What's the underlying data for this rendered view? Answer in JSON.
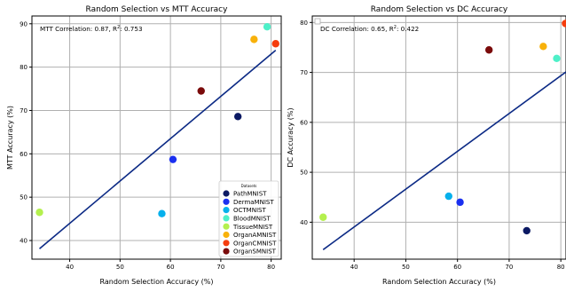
{
  "chart_data": [
    {
      "type": "scatter",
      "title": "Random Selection vs MTT Accuracy",
      "xlabel": "Random Selection Accuracy (%)",
      "ylabel": "MTT Accuracy (%)",
      "xlim": [
        32.5,
        82.0
      ],
      "ylim": [
        35.7,
        91.8
      ],
      "xticks": [
        40,
        50,
        60,
        70,
        80
      ],
      "yticks": [
        40,
        50,
        60,
        70,
        80,
        90
      ],
      "grid": true,
      "annotation_prefix": "MTT Correlation: 0.87, R",
      "annotation_sup": "2",
      "annotation_suffix": ": 0.753",
      "legend": {
        "title": "Datasets",
        "placement": "lower-right",
        "entries": [
          "PathMNIST",
          "DermaMNIST",
          "OCTMNIST",
          "BloodMNIST",
          "TissueMNIST",
          "OrganAMNIST",
          "OrganCMNIST",
          "OrganSMNIST"
        ]
      },
      "points": [
        {
          "name": "PathMNIST",
          "x": 73.4,
          "y": 68.6,
          "color": "#0b1963"
        },
        {
          "name": "DermaMNIST",
          "x": 60.5,
          "y": 58.7,
          "color": "#1a2ff0"
        },
        {
          "name": "OCTMNIST",
          "x": 58.3,
          "y": 46.2,
          "color": "#06b0ec"
        },
        {
          "name": "BloodMNIST",
          "x": 79.2,
          "y": 89.3,
          "color": "#4ef0c8"
        },
        {
          "name": "TissueMNIST",
          "x": 34.0,
          "y": 46.5,
          "color": "#b4f04e"
        },
        {
          "name": "OrganAMNIST",
          "x": 76.6,
          "y": 86.4,
          "color": "#f8b10a"
        },
        {
          "name": "OrganCMNIST",
          "x": 80.9,
          "y": 85.4,
          "color": "#f53d0e"
        },
        {
          "name": "OrganSMNIST",
          "x": 66.1,
          "y": 74.5,
          "color": "#7a0a0a"
        }
      ],
      "fit_line": {
        "x": [
          34.0,
          80.9
        ],
        "y": [
          38.1,
          83.9
        ],
        "color": "#0c2a85"
      }
    },
    {
      "type": "scatter",
      "title": "Random Selection vs DC Accuracy",
      "xlabel": "Random Selection Accuracy (%)",
      "ylabel": "DC Accuracy (%)",
      "xlim": [
        31.9,
        81.0
      ],
      "ylim": [
        32.6,
        81.3
      ],
      "xticks": [
        40,
        50,
        60,
        70,
        80
      ],
      "yticks": [
        40,
        50,
        60,
        70,
        80
      ],
      "grid": true,
      "annotation_prefix": "DC Correlation: 0.65, R",
      "annotation_sup": "2",
      "annotation_suffix": ": 0.422",
      "legend": {
        "placement": "upper-left"
      },
      "points": [
        {
          "name": "PathMNIST",
          "x": 73.4,
          "y": 38.3,
          "color": "#0b1963"
        },
        {
          "name": "DermaMNIST",
          "x": 60.5,
          "y": 44.0,
          "color": "#1a2ff0"
        },
        {
          "name": "OCTMNIST",
          "x": 58.3,
          "y": 45.2,
          "color": "#06b0ec"
        },
        {
          "name": "BloodMNIST",
          "x": 79.2,
          "y": 72.8,
          "color": "#4ef0c8"
        },
        {
          "name": "TissueMNIST",
          "x": 34.0,
          "y": 41.0,
          "color": "#b4f04e"
        },
        {
          "name": "OrganAMNIST",
          "x": 76.6,
          "y": 75.2,
          "color": "#f8b10a"
        },
        {
          "name": "OrganCMNIST",
          "x": 80.9,
          "y": 79.8,
          "color": "#f53d0e"
        },
        {
          "name": "OrganSMNIST",
          "x": 66.1,
          "y": 74.5,
          "color": "#7a0a0a"
        }
      ],
      "fit_line": {
        "x": [
          34.0,
          81.0
        ],
        "y": [
          34.5,
          70.1
        ],
        "color": "#0c2a85"
      }
    }
  ]
}
